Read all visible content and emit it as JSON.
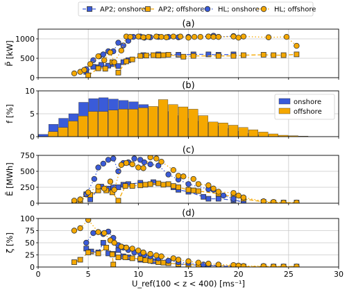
{
  "legend": [
    {
      "label": "AP2; onshore",
      "color": "#3a5bd9",
      "marker": "square",
      "linestyle": "dashed"
    },
    {
      "label": "AP2; offshore",
      "color": "#f5a800",
      "marker": "square",
      "linestyle": "dashed"
    },
    {
      "label": "HL; onshore",
      "color": "#3a5bd9",
      "marker": "circle",
      "linestyle": "dotted"
    },
    {
      "label": "HL; offshore",
      "color": "#f5a800",
      "marker": "circle",
      "linestyle": "dotted"
    }
  ],
  "colors": {
    "onshore": "#3a5bd9",
    "offshore": "#f5a800",
    "marker_edge": "#333333",
    "grid": "#c8c8c8"
  },
  "xaxis": {
    "label": "U_ref(100 < z < 400) [ms⁻¹]",
    "lim": [
      0,
      30
    ],
    "ticks": [
      0,
      5,
      10,
      15,
      20,
      25,
      30
    ]
  },
  "chart_data": [
    {
      "type": "line",
      "title": "(a)",
      "ylabel": "P̄ [kW]",
      "ylim": [
        0,
        1250
      ],
      "yticks": [
        0,
        500,
        1000
      ],
      "series": [
        {
          "name": "AP2; onshore",
          "x": [
            4.8,
            5.5,
            6.0,
            6.3,
            7.0,
            7.5,
            8.0,
            8.5,
            9.0,
            10.5,
            12.0,
            14.0,
            15.5,
            17.0,
            18.0,
            19.5
          ],
          "y": [
            150,
            280,
            270,
            330,
            310,
            350,
            300,
            400,
            450,
            580,
            600,
            590,
            600,
            600,
            590,
            600
          ]
        },
        {
          "name": "AP2; offshore",
          "x": [
            5.0,
            6.0,
            6.7,
            7.4,
            8.0,
            8.8,
            9.4,
            10.2,
            10.8,
            11.5,
            12.0,
            12.5,
            13.0,
            14.5,
            15.5,
            18.0,
            19.5,
            20.5,
            22.5,
            23.5,
            24.5,
            25.8
          ],
          "y": [
            60,
            240,
            230,
            400,
            130,
            420,
            470,
            560,
            570,
            580,
            570,
            580,
            590,
            540,
            560,
            560,
            560,
            580,
            590,
            580,
            580,
            600
          ]
        },
        {
          "name": "HL; onshore",
          "x": [
            4.8,
            5.5,
            6.1,
            6.5,
            7.0,
            7.5,
            8.0,
            8.5,
            9.0,
            9.5,
            10.2,
            10.6,
            11.2,
            12.0,
            13.0,
            14.0,
            15.0,
            17.0,
            17.5,
            18.0,
            19.5
          ],
          "y": [
            220,
            450,
            550,
            600,
            680,
            680,
            900,
            830,
            950,
            1050,
            1060,
            1030,
            1040,
            1050,
            1050,
            1040,
            1050,
            1060,
            1080,
            1050,
            1070
          ]
        },
        {
          "name": "HL; offshore",
          "x": [
            3.6,
            4.2,
            4.6,
            5.2,
            6.0,
            6.6,
            7.2,
            7.6,
            8.3,
            8.8,
            9.2,
            10.0,
            10.5,
            11.0,
            11.8,
            12.3,
            12.8,
            13.5,
            14.2,
            15.0,
            15.6,
            16.2,
            17.0,
            17.5,
            18.0,
            19.5,
            20.0,
            20.5,
            23.0,
            24.8,
            25.8
          ],
          "y": [
            110,
            150,
            200,
            350,
            550,
            450,
            650,
            400,
            700,
            1060,
            1050,
            1060,
            1040,
            1050,
            1060,
            1050,
            1040,
            1060,
            1060,
            1030,
            1050,
            1050,
            1060,
            1050,
            1050,
            1060,
            1030,
            1060,
            1040,
            1050,
            820
          ]
        }
      ]
    },
    {
      "type": "bar",
      "title": "(b)",
      "ylabel": "f [%]",
      "ylim": [
        0,
        10
      ],
      "yticks": [
        0,
        5,
        10
      ],
      "legend_position": "right",
      "series": [
        {
          "name": "onshore",
          "x": [
            1,
            2,
            3,
            4,
            5,
            6,
            7,
            8,
            9,
            10,
            11,
            12,
            13,
            14,
            15,
            16,
            17,
            18,
            19,
            20,
            21,
            22,
            23,
            24,
            25,
            26
          ],
          "values": [
            0.5,
            2.7,
            4.0,
            5.0,
            7.5,
            8.3,
            8.5,
            8.2,
            7.9,
            7.6,
            7.0,
            6.5,
            5.5,
            4.6,
            4.0,
            3.4,
            3.0,
            2.3,
            1.8,
            1.2,
            0.7,
            0.4,
            0.2,
            0.1,
            0.05,
            0.02
          ]
        },
        {
          "name": "offshore",
          "x": [
            1,
            2,
            3,
            4,
            5,
            6,
            7,
            8,
            9,
            10,
            11,
            12,
            13,
            14,
            15,
            16,
            17,
            18,
            19,
            20,
            21,
            22,
            23,
            24,
            25,
            26
          ],
          "values": [
            1.1,
            2.0,
            3.4,
            4.5,
            5.5,
            5.5,
            5.8,
            6.0,
            6.0,
            6.3,
            6.6,
            8.1,
            7.0,
            6.5,
            6.0,
            4.6,
            3.2,
            3.0,
            2.5,
            2.0,
            1.5,
            1.0,
            0.6,
            0.3,
            0.2,
            0.1
          ]
        }
      ]
    },
    {
      "type": "line",
      "title": "(c)",
      "ylabel": "Ē [MWh]",
      "ylim": [
        0,
        750
      ],
      "yticks": [
        0,
        250,
        500,
        750
      ],
      "series": [
        {
          "name": "AP2; onshore",
          "x": [
            4.8,
            5.2,
            6.0,
            6.3,
            7.0,
            7.5,
            8.0,
            8.5,
            9.0,
            10.2,
            11.5,
            13.5,
            14.0,
            15.0,
            16.5,
            17.0,
            18.0,
            19.5,
            20.5
          ],
          "y": [
            140,
            60,
            230,
            260,
            230,
            250,
            250,
            290,
            300,
            320,
            330,
            250,
            210,
            180,
            100,
            70,
            70,
            50,
            20
          ]
        },
        {
          "name": "AP2; offshore",
          "x": [
            3.6,
            4.2,
            5.2,
            6.0,
            6.8,
            7.4,
            8.0,
            8.7,
            9.4,
            10.2,
            10.7,
            11.2,
            12.0,
            12.5,
            13.0,
            13.5,
            14.0,
            15.0,
            15.5,
            16.0,
            18.0,
            19.5,
            20.5,
            22.5,
            23.5,
            24.5,
            25.8
          ],
          "y": [
            20,
            40,
            130,
            200,
            200,
            170,
            40,
            270,
            270,
            280,
            290,
            300,
            310,
            290,
            300,
            270,
            250,
            210,
            200,
            190,
            150,
            100,
            70,
            20,
            10,
            10,
            10
          ]
        },
        {
          "name": "HL; onshore",
          "x": [
            4.8,
            5.6,
            6.0,
            6.5,
            7.0,
            7.5,
            8.0,
            8.5,
            9.0,
            9.6,
            10.2,
            10.6,
            11.2,
            12.0,
            13.0,
            14.0,
            15.0,
            17.0,
            17.5,
            18.5,
            19.5
          ],
          "y": [
            140,
            380,
            560,
            620,
            680,
            700,
            500,
            630,
            640,
            700,
            680,
            640,
            610,
            590,
            450,
            370,
            300,
            220,
            210,
            120,
            70
          ]
        },
        {
          "name": "HL; offshore",
          "x": [
            3.6,
            4.2,
            5.0,
            6.0,
            6.6,
            7.2,
            7.6,
            8.3,
            8.8,
            9.4,
            10.0,
            10.5,
            11.2,
            11.8,
            12.3,
            13.5,
            14.0,
            14.5,
            15.5,
            16.0,
            17.0,
            17.5,
            18.0,
            19.5,
            20.0,
            20.5,
            22.5,
            23.5,
            24.5,
            25.8
          ],
          "y": [
            40,
            60,
            170,
            260,
            230,
            340,
            210,
            600,
            630,
            610,
            560,
            550,
            720,
            700,
            650,
            520,
            430,
            420,
            380,
            300,
            280,
            230,
            180,
            160,
            120,
            90,
            30,
            20,
            10,
            10
          ]
        }
      ]
    },
    {
      "type": "line",
      "title": "(d)",
      "ylabel": "ζ [%]",
      "ylim": [
        0,
        100
      ],
      "yticks": [
        0,
        25,
        50,
        75,
        100
      ],
      "series": [
        {
          "name": "AP2; onshore",
          "x": [
            4.8,
            5.3,
            6.0,
            6.5,
            7.0,
            7.5,
            8.0,
            8.5,
            9.0,
            10.2,
            11.5,
            13.0,
            14.0,
            15.0,
            16.5,
            17.0,
            18.0,
            19.5,
            20.5
          ],
          "y": [
            38,
            32,
            30,
            50,
            28,
            27,
            35,
            22,
            20,
            15,
            12,
            8,
            6,
            5,
            3,
            3,
            2,
            1,
            1
          ]
        },
        {
          "name": "AP2; offshore",
          "x": [
            3.6,
            4.2,
            5.0,
            6.0,
            6.8,
            7.4,
            7.5,
            8.0,
            8.7,
            9.4,
            10.2,
            10.7,
            11.2,
            12.0,
            12.5,
            13.0,
            14.0,
            15.0,
            16.0,
            18.0,
            19.5,
            20.5,
            22.5,
            23.5,
            24.5,
            25.8
          ],
          "y": [
            10,
            15,
            30,
            28,
            40,
            26,
            5,
            20,
            20,
            18,
            17,
            14,
            13,
            10,
            9,
            8,
            6,
            5,
            4,
            3,
            2,
            1,
            1,
            1,
            1,
            1
          ]
        },
        {
          "name": "HL; onshore",
          "x": [
            4.8,
            5.5,
            6.0,
            6.5,
            7.0,
            7.5,
            8.0,
            8.5,
            9.0,
            9.6,
            10.2,
            10.6,
            11.2,
            12.0,
            13.0,
            14.0,
            15.0,
            16.5,
            17.0,
            18.0,
            19.5
          ],
          "y": [
            50,
            70,
            72,
            68,
            73,
            60,
            45,
            40,
            35,
            30,
            28,
            25,
            22,
            18,
            13,
            10,
            8,
            5,
            4,
            3,
            2
          ]
        },
        {
          "name": "HL; offshore",
          "x": [
            3.6,
            4.2,
            5.0,
            6.0,
            6.6,
            7.2,
            7.6,
            8.3,
            8.8,
            9.4,
            10.0,
            10.5,
            11.2,
            11.8,
            12.3,
            13.5,
            14.0,
            15.0,
            16.0,
            17.0,
            18.0,
            19.5,
            20.0,
            20.5,
            22.5,
            23.5,
            24.5,
            25.8
          ],
          "y": [
            75,
            80,
            97,
            72,
            70,
            55,
            50,
            42,
            40,
            38,
            34,
            30,
            27,
            24,
            22,
            18,
            15,
            12,
            9,
            7,
            5,
            4,
            3,
            2,
            2,
            1,
            1,
            1
          ]
        }
      ]
    }
  ]
}
